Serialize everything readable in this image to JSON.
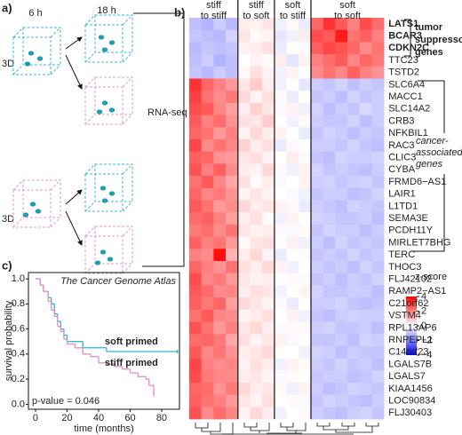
{
  "panel_a": {
    "label": "a)",
    "times": [
      "6 h",
      "18 h"
    ],
    "dimension_labels": [
      "3D",
      "3D"
    ],
    "method": "RNA-seq"
  },
  "chart_data": [
    {
      "type": "heatmap",
      "label": "b)",
      "rows": [
        "LATS1",
        "BCAR3",
        "CDKN2C",
        "TTC23",
        "TSTD2",
        "SLC6A4",
        "MACC1",
        "SLC14A2",
        "CRB3",
        "NFKBIL1",
        "RAC3",
        "CLIC3",
        "CYBA",
        "FRMD6−AS1",
        "LAIR1",
        "L1TD1",
        "SEMA3E",
        "PCDH11Y",
        "MIRLET7BHG",
        "TERC",
        "THOC3",
        "FLJ42102",
        "RAMP2−AS1",
        "C21orf62",
        "VSTM4",
        "RPL13AP6",
        "RNPEPL1",
        "C14orf23",
        "LGALS7B",
        "LGALS7",
        "KIAA1456",
        "LOC90834",
        "FLJ30403"
      ],
      "series": [
        {
          "name": [
            "stiff",
            "to stiff"
          ],
          "values": [
            [
              -1.0,
              -1.2,
              -0.8,
              -1.1
            ],
            [
              -0.9,
              -1.0,
              -1.1,
              -0.7
            ],
            [
              -1.1,
              -0.9,
              -1.0,
              -0.9
            ],
            [
              -1.0,
              -0.8,
              -1.2,
              -1.0
            ],
            [
              -0.9,
              -1.1,
              -0.8,
              -1.0
            ],
            [
              3.2,
              2.4,
              2.0,
              1.6
            ],
            [
              3.0,
              2.2,
              1.8,
              2.1
            ],
            [
              2.8,
              2.6,
              1.9,
              1.5
            ],
            [
              2.6,
              2.0,
              2.3,
              1.7
            ],
            [
              2.4,
              2.2,
              1.6,
              2.0
            ],
            [
              2.9,
              1.8,
              2.2,
              1.9
            ],
            [
              2.5,
              2.4,
              1.7,
              1.6
            ],
            [
              2.7,
              2.0,
              2.5,
              1.8
            ],
            [
              2.2,
              2.6,
              1.9,
              1.4
            ],
            [
              2.4,
              1.9,
              2.1,
              1.7
            ],
            [
              2.6,
              2.2,
              1.6,
              1.8
            ],
            [
              2.3,
              2.5,
              2.0,
              1.5
            ],
            [
              2.1,
              2.3,
              1.8,
              2.2
            ],
            [
              2.5,
              2.0,
              2.2,
              1.6
            ],
            [
              2.0,
              1.8,
              3.8,
              1.2
            ],
            [
              2.4,
              2.0,
              1.7,
              2.2
            ],
            [
              2.8,
              1.9,
              2.1,
              1.6
            ],
            [
              2.6,
              2.3,
              1.8,
              1.9
            ],
            [
              2.5,
              2.1,
              2.4,
              1.5
            ],
            [
              2.2,
              2.6,
              1.9,
              1.8
            ],
            [
              2.7,
              2.2,
              1.6,
              2.0
            ],
            [
              2.3,
              2.4,
              2.1,
              1.4
            ],
            [
              2.6,
              1.9,
              2.2,
              1.7
            ],
            [
              2.9,
              2.0,
              1.8,
              1.9
            ],
            [
              2.8,
              2.1,
              1.9,
              1.8
            ],
            [
              2.4,
              2.3,
              1.7,
              2.1
            ],
            [
              2.5,
              2.2,
              2.0,
              1.6
            ],
            [
              2.7,
              1.8,
              2.3,
              1.9
            ]
          ]
        },
        {
          "name": [
            "stiff",
            "to soft"
          ],
          "values": [
            [
              0.3,
              0.2,
              0.4
            ],
            [
              0.4,
              0.1,
              0.2
            ],
            [
              0.2,
              0.3,
              0.5
            ],
            [
              0.0,
              0.2,
              0.1
            ],
            [
              0.1,
              0.5,
              0.2
            ],
            [
              0.4,
              0.8,
              0.3
            ],
            [
              0.6,
              0.2,
              0.5
            ],
            [
              0.3,
              0.7,
              0.4
            ],
            [
              0.5,
              0.4,
              0.8
            ],
            [
              0.2,
              0.6,
              0.3
            ],
            [
              0.7,
              0.3,
              0.5
            ],
            [
              0.4,
              0.5,
              0.2
            ],
            [
              0.3,
              0.2,
              0.6
            ],
            [
              0.5,
              0.1,
              0.3
            ],
            [
              0.2,
              0.4,
              0.2
            ],
            [
              0.6,
              0.3,
              0.4
            ],
            [
              0.3,
              0.5,
              0.1
            ],
            [
              0.4,
              0.2,
              0.3
            ],
            [
              0.1,
              0.4,
              0.5
            ],
            [
              0.3,
              0.6,
              0.2
            ],
            [
              0.5,
              0.3,
              0.6
            ],
            [
              0.4,
              0.2,
              0.3
            ],
            [
              0.3,
              0.5,
              0.4
            ],
            [
              0.6,
              0.4,
              0.2
            ],
            [
              0.2,
              0.3,
              0.5
            ],
            [
              0.4,
              0.6,
              0.3
            ],
            [
              0.5,
              0.2,
              0.4
            ],
            [
              0.3,
              0.4,
              0.6
            ],
            [
              0.2,
              0.5,
              0.3
            ],
            [
              0.3,
              0.4,
              0.2
            ],
            [
              0.6,
              0.3,
              0.4
            ],
            [
              0.4,
              0.2,
              0.5
            ],
            [
              0.2,
              0.6,
              0.3
            ]
          ]
        },
        {
          "name": [
            "soft",
            "to stiff"
          ],
          "values": [
            [
              -0.2,
              0.1,
              -0.3
            ],
            [
              -0.4,
              -0.2,
              0.3
            ],
            [
              -0.3,
              0.0,
              -0.1
            ],
            [
              0.3,
              -0.4,
              0.2
            ],
            [
              -0.2,
              0.2,
              0.0
            ],
            [
              -0.2,
              0.0,
              -0.4
            ],
            [
              0.1,
              -0.3,
              0.0
            ],
            [
              -0.1,
              0.2,
              -0.2
            ],
            [
              0.0,
              -0.2,
              0.1
            ],
            [
              0.2,
              0.0,
              -0.3
            ],
            [
              -0.3,
              0.1,
              0.0
            ],
            [
              0.0,
              0.3,
              -0.1
            ],
            [
              0.1,
              -0.2,
              0.2
            ],
            [
              -0.1,
              0.0,
              0.2
            ],
            [
              0.0,
              -0.1,
              -0.2
            ],
            [
              0.2,
              0.1,
              -0.3
            ],
            [
              -0.2,
              0.2,
              0.0
            ],
            [
              0.1,
              -0.1,
              0.1
            ],
            [
              0.0,
              0.2,
              -0.2
            ],
            [
              -0.3,
              0.0,
              0.1
            ],
            [
              0.2,
              -0.2,
              0.0
            ],
            [
              0.0,
              0.1,
              -0.1
            ],
            [
              -0.2,
              0.0,
              0.2
            ],
            [
              0.1,
              -0.3,
              0.0
            ],
            [
              0.0,
              0.2,
              -0.2
            ],
            [
              -0.1,
              0.1,
              0.1
            ],
            [
              0.2,
              -0.1,
              0.0
            ],
            [
              0.0,
              0.0,
              -0.2
            ],
            [
              -0.2,
              0.2,
              0.1
            ],
            [
              -0.1,
              0.1,
              0.0
            ],
            [
              0.1,
              -0.2,
              0.2
            ],
            [
              0.0,
              0.1,
              -0.1
            ],
            [
              -0.2,
              0.0,
              0.1
            ]
          ]
        },
        {
          "name": [
            "soft",
            "to soft"
          ],
          "values": [
            [
              2.4,
              3.2,
              2.6,
              2.0,
              2.8,
              2.3
            ],
            [
              2.8,
              2.6,
              3.6,
              2.2,
              2.5,
              2.0
            ],
            [
              2.5,
              2.9,
              2.7,
              2.4,
              1.8,
              2.2
            ],
            [
              2.0,
              2.3,
              2.6,
              1.9,
              2.4,
              2.1
            ],
            [
              1.8,
              2.2,
              1.9,
              2.5,
              2.0,
              1.7
            ],
            [
              -0.8,
              -0.9,
              -0.7,
              -1.0,
              -0.8,
              -0.9
            ],
            [
              -0.9,
              -0.8,
              -1.0,
              -0.7,
              -0.9,
              -0.8
            ],
            [
              -0.7,
              -1.0,
              -0.8,
              -0.9,
              -0.6,
              -0.8
            ],
            [
              -0.8,
              -0.9,
              -0.9,
              -0.7,
              -1.0,
              -0.8
            ],
            [
              -0.9,
              -0.7,
              -0.8,
              -1.0,
              -0.8,
              -0.9
            ],
            [
              -0.8,
              -0.8,
              -0.9,
              -0.7,
              -0.9,
              -1.0
            ],
            [
              -0.9,
              -1.0,
              -0.7,
              -0.8,
              -0.8,
              -0.7
            ],
            [
              -0.7,
              -0.9,
              -0.8,
              -0.9,
              -1.0,
              -0.8
            ],
            [
              -0.8,
              -0.7,
              -0.9,
              -0.8,
              -0.7,
              -0.9
            ],
            [
              -0.9,
              -0.8,
              -0.8,
              -1.0,
              -0.9,
              -0.7
            ],
            [
              -0.8,
              -0.9,
              -1.0,
              -0.7,
              -0.8,
              -0.9
            ],
            [
              -0.7,
              -0.8,
              -0.9,
              -0.9,
              -0.8,
              -1.0
            ],
            [
              -0.9,
              -0.7,
              -0.8,
              -0.8,
              -1.0,
              -0.8
            ],
            [
              -0.8,
              -1.0,
              -0.7,
              -0.9,
              -0.8,
              -0.9
            ],
            [
              -0.9,
              -0.8,
              -0.9,
              -0.7,
              -0.9,
              -0.8
            ],
            [
              -0.8,
              -0.9,
              -0.8,
              -1.0,
              -0.7,
              -0.9
            ],
            [
              -0.9,
              -0.8,
              -1.0,
              -0.8,
              -0.9,
              -0.7
            ],
            [
              -0.7,
              -0.9,
              -0.9,
              -0.8,
              -0.8,
              -1.0
            ],
            [
              -0.8,
              -0.8,
              -0.7,
              -0.9,
              -1.0,
              -0.9
            ],
            [
              -0.9,
              -1.0,
              -0.8,
              -0.7,
              -0.8,
              -0.8
            ],
            [
              -0.8,
              -0.7,
              -0.9,
              -0.9,
              -0.8,
              -1.0
            ],
            [
              -0.9,
              -0.9,
              -0.8,
              -1.0,
              -0.7,
              -0.8
            ],
            [
              -0.7,
              -0.8,
              -1.0,
              -0.8,
              -0.9,
              -0.9
            ],
            [
              -0.8,
              -0.9,
              -0.7,
              -0.9,
              -0.8,
              -1.0
            ],
            [
              -0.9,
              -0.8,
              -0.8,
              -1.0,
              -0.9,
              -0.7
            ],
            [
              -0.8,
              -1.0,
              -0.9,
              -0.7,
              -0.8,
              -0.9
            ],
            [
              -0.9,
              -0.7,
              -0.8,
              -0.9,
              -1.0,
              -0.8
            ],
            [
              -0.8,
              -0.9,
              -1.0,
              -0.8,
              -0.7,
              -0.9
            ]
          ]
        }
      ],
      "annotations": [
        {
          "lines": [
            "tumor",
            "suppressor",
            "genes"
          ]
        },
        {
          "lines": [
            "cancer-",
            "associated",
            "genes"
          ]
        }
      ],
      "colorbar": {
        "title": "z-score",
        "vlim": [
          -4,
          4
        ],
        "ticks": [
          4,
          2,
          0,
          {
            "value": -2,
            "label": "−2"
          },
          {
            "value": -4,
            "label": "−4"
          }
        ],
        "colors": [
          "#0000ff",
          "#ffffff",
          "#ff0000"
        ]
      }
    },
    {
      "type": "step",
      "label": "c)",
      "title": "The Cancer Genome Atlas",
      "xlabel": "time (months)",
      "ylabel": "survival probability",
      "annotation": "p-value = 0.046",
      "xlim": [
        -4.5,
        91.3
      ],
      "ylim": [
        -0.04,
        1.05
      ],
      "xticks": [
        0,
        20,
        40,
        60,
        80
      ],
      "yticks": [
        {
          "value": 0,
          "label": "0.0"
        },
        0.2,
        0.4,
        0.6,
        0.8,
        {
          "value": 1,
          "label": "1.0"
        }
      ],
      "series": [
        {
          "name": "soft primed",
          "color": "#2bb3d6",
          "x": [
            0,
            3,
            5,
            8,
            10,
            12,
            14,
            16,
            18,
            20,
            25,
            30,
            45,
            90
          ],
          "values": [
            1,
            0.95,
            0.9,
            0.85,
            0.8,
            0.72,
            0.66,
            0.6,
            0.55,
            0.5,
            0.5,
            0.45,
            0.42,
            0.42
          ]
        },
        {
          "name": "stiff primed",
          "color": "#e88bbd",
          "x": [
            0,
            3,
            5,
            8,
            10,
            12,
            14,
            16,
            18,
            20,
            25,
            30,
            35,
            40,
            45,
            50,
            55,
            60,
            65,
            70,
            72,
            75
          ],
          "values": [
            1,
            0.95,
            0.9,
            0.82,
            0.75,
            0.7,
            0.62,
            0.58,
            0.52,
            0.48,
            0.45,
            0.4,
            0.38,
            0.33,
            0.32,
            0.3,
            0.28,
            0.25,
            0.22,
            0.2,
            0.15,
            0.08
          ]
        }
      ]
    }
  ]
}
